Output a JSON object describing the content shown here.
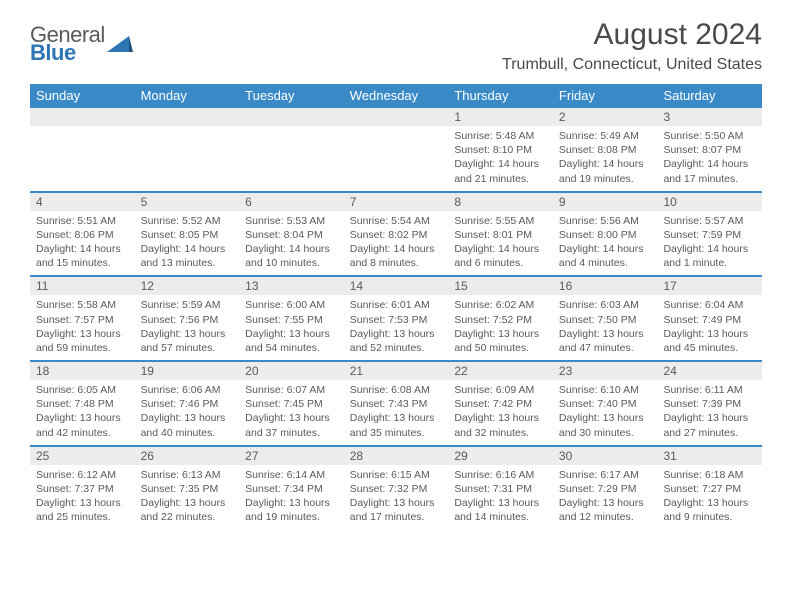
{
  "logo": {
    "word1": "General",
    "word2": "Blue"
  },
  "title": "August 2024",
  "location": "Trumbull, Connecticut, United States",
  "colors": {
    "header_blue": "#3a8ac8",
    "gray_bg": "#ececec",
    "text": "#5a5a5a"
  },
  "day_headers": [
    "Sunday",
    "Monday",
    "Tuesday",
    "Wednesday",
    "Thursday",
    "Friday",
    "Saturday"
  ],
  "weeks": [
    {
      "nums": [
        "",
        "",
        "",
        "",
        "1",
        "2",
        "3"
      ],
      "cells": [
        {
          "sunrise": "",
          "sunset": "",
          "daylight1": "",
          "daylight2": ""
        },
        {
          "sunrise": "",
          "sunset": "",
          "daylight1": "",
          "daylight2": ""
        },
        {
          "sunrise": "",
          "sunset": "",
          "daylight1": "",
          "daylight2": ""
        },
        {
          "sunrise": "",
          "sunset": "",
          "daylight1": "",
          "daylight2": ""
        },
        {
          "sunrise": "Sunrise: 5:48 AM",
          "sunset": "Sunset: 8:10 PM",
          "daylight1": "Daylight: 14 hours",
          "daylight2": "and 21 minutes."
        },
        {
          "sunrise": "Sunrise: 5:49 AM",
          "sunset": "Sunset: 8:08 PM",
          "daylight1": "Daylight: 14 hours",
          "daylight2": "and 19 minutes."
        },
        {
          "sunrise": "Sunrise: 5:50 AM",
          "sunset": "Sunset: 8:07 PM",
          "daylight1": "Daylight: 14 hours",
          "daylight2": "and 17 minutes."
        }
      ]
    },
    {
      "nums": [
        "4",
        "5",
        "6",
        "7",
        "8",
        "9",
        "10"
      ],
      "cells": [
        {
          "sunrise": "Sunrise: 5:51 AM",
          "sunset": "Sunset: 8:06 PM",
          "daylight1": "Daylight: 14 hours",
          "daylight2": "and 15 minutes."
        },
        {
          "sunrise": "Sunrise: 5:52 AM",
          "sunset": "Sunset: 8:05 PM",
          "daylight1": "Daylight: 14 hours",
          "daylight2": "and 13 minutes."
        },
        {
          "sunrise": "Sunrise: 5:53 AM",
          "sunset": "Sunset: 8:04 PM",
          "daylight1": "Daylight: 14 hours",
          "daylight2": "and 10 minutes."
        },
        {
          "sunrise": "Sunrise: 5:54 AM",
          "sunset": "Sunset: 8:02 PM",
          "daylight1": "Daylight: 14 hours",
          "daylight2": "and 8 minutes."
        },
        {
          "sunrise": "Sunrise: 5:55 AM",
          "sunset": "Sunset: 8:01 PM",
          "daylight1": "Daylight: 14 hours",
          "daylight2": "and 6 minutes."
        },
        {
          "sunrise": "Sunrise: 5:56 AM",
          "sunset": "Sunset: 8:00 PM",
          "daylight1": "Daylight: 14 hours",
          "daylight2": "and 4 minutes."
        },
        {
          "sunrise": "Sunrise: 5:57 AM",
          "sunset": "Sunset: 7:59 PM",
          "daylight1": "Daylight: 14 hours",
          "daylight2": "and 1 minute."
        }
      ]
    },
    {
      "nums": [
        "11",
        "12",
        "13",
        "14",
        "15",
        "16",
        "17"
      ],
      "cells": [
        {
          "sunrise": "Sunrise: 5:58 AM",
          "sunset": "Sunset: 7:57 PM",
          "daylight1": "Daylight: 13 hours",
          "daylight2": "and 59 minutes."
        },
        {
          "sunrise": "Sunrise: 5:59 AM",
          "sunset": "Sunset: 7:56 PM",
          "daylight1": "Daylight: 13 hours",
          "daylight2": "and 57 minutes."
        },
        {
          "sunrise": "Sunrise: 6:00 AM",
          "sunset": "Sunset: 7:55 PM",
          "daylight1": "Daylight: 13 hours",
          "daylight2": "and 54 minutes."
        },
        {
          "sunrise": "Sunrise: 6:01 AM",
          "sunset": "Sunset: 7:53 PM",
          "daylight1": "Daylight: 13 hours",
          "daylight2": "and 52 minutes."
        },
        {
          "sunrise": "Sunrise: 6:02 AM",
          "sunset": "Sunset: 7:52 PM",
          "daylight1": "Daylight: 13 hours",
          "daylight2": "and 50 minutes."
        },
        {
          "sunrise": "Sunrise: 6:03 AM",
          "sunset": "Sunset: 7:50 PM",
          "daylight1": "Daylight: 13 hours",
          "daylight2": "and 47 minutes."
        },
        {
          "sunrise": "Sunrise: 6:04 AM",
          "sunset": "Sunset: 7:49 PM",
          "daylight1": "Daylight: 13 hours",
          "daylight2": "and 45 minutes."
        }
      ]
    },
    {
      "nums": [
        "18",
        "19",
        "20",
        "21",
        "22",
        "23",
        "24"
      ],
      "cells": [
        {
          "sunrise": "Sunrise: 6:05 AM",
          "sunset": "Sunset: 7:48 PM",
          "daylight1": "Daylight: 13 hours",
          "daylight2": "and 42 minutes."
        },
        {
          "sunrise": "Sunrise: 6:06 AM",
          "sunset": "Sunset: 7:46 PM",
          "daylight1": "Daylight: 13 hours",
          "daylight2": "and 40 minutes."
        },
        {
          "sunrise": "Sunrise: 6:07 AM",
          "sunset": "Sunset: 7:45 PM",
          "daylight1": "Daylight: 13 hours",
          "daylight2": "and 37 minutes."
        },
        {
          "sunrise": "Sunrise: 6:08 AM",
          "sunset": "Sunset: 7:43 PM",
          "daylight1": "Daylight: 13 hours",
          "daylight2": "and 35 minutes."
        },
        {
          "sunrise": "Sunrise: 6:09 AM",
          "sunset": "Sunset: 7:42 PM",
          "daylight1": "Daylight: 13 hours",
          "daylight2": "and 32 minutes."
        },
        {
          "sunrise": "Sunrise: 6:10 AM",
          "sunset": "Sunset: 7:40 PM",
          "daylight1": "Daylight: 13 hours",
          "daylight2": "and 30 minutes."
        },
        {
          "sunrise": "Sunrise: 6:11 AM",
          "sunset": "Sunset: 7:39 PM",
          "daylight1": "Daylight: 13 hours",
          "daylight2": "and 27 minutes."
        }
      ]
    },
    {
      "nums": [
        "25",
        "26",
        "27",
        "28",
        "29",
        "30",
        "31"
      ],
      "cells": [
        {
          "sunrise": "Sunrise: 6:12 AM",
          "sunset": "Sunset: 7:37 PM",
          "daylight1": "Daylight: 13 hours",
          "daylight2": "and 25 minutes."
        },
        {
          "sunrise": "Sunrise: 6:13 AM",
          "sunset": "Sunset: 7:35 PM",
          "daylight1": "Daylight: 13 hours",
          "daylight2": "and 22 minutes."
        },
        {
          "sunrise": "Sunrise: 6:14 AM",
          "sunset": "Sunset: 7:34 PM",
          "daylight1": "Daylight: 13 hours",
          "daylight2": "and 19 minutes."
        },
        {
          "sunrise": "Sunrise: 6:15 AM",
          "sunset": "Sunset: 7:32 PM",
          "daylight1": "Daylight: 13 hours",
          "daylight2": "and 17 minutes."
        },
        {
          "sunrise": "Sunrise: 6:16 AM",
          "sunset": "Sunset: 7:31 PM",
          "daylight1": "Daylight: 13 hours",
          "daylight2": "and 14 minutes."
        },
        {
          "sunrise": "Sunrise: 6:17 AM",
          "sunset": "Sunset: 7:29 PM",
          "daylight1": "Daylight: 13 hours",
          "daylight2": "and 12 minutes."
        },
        {
          "sunrise": "Sunrise: 6:18 AM",
          "sunset": "Sunset: 7:27 PM",
          "daylight1": "Daylight: 13 hours",
          "daylight2": "and 9 minutes."
        }
      ]
    }
  ]
}
